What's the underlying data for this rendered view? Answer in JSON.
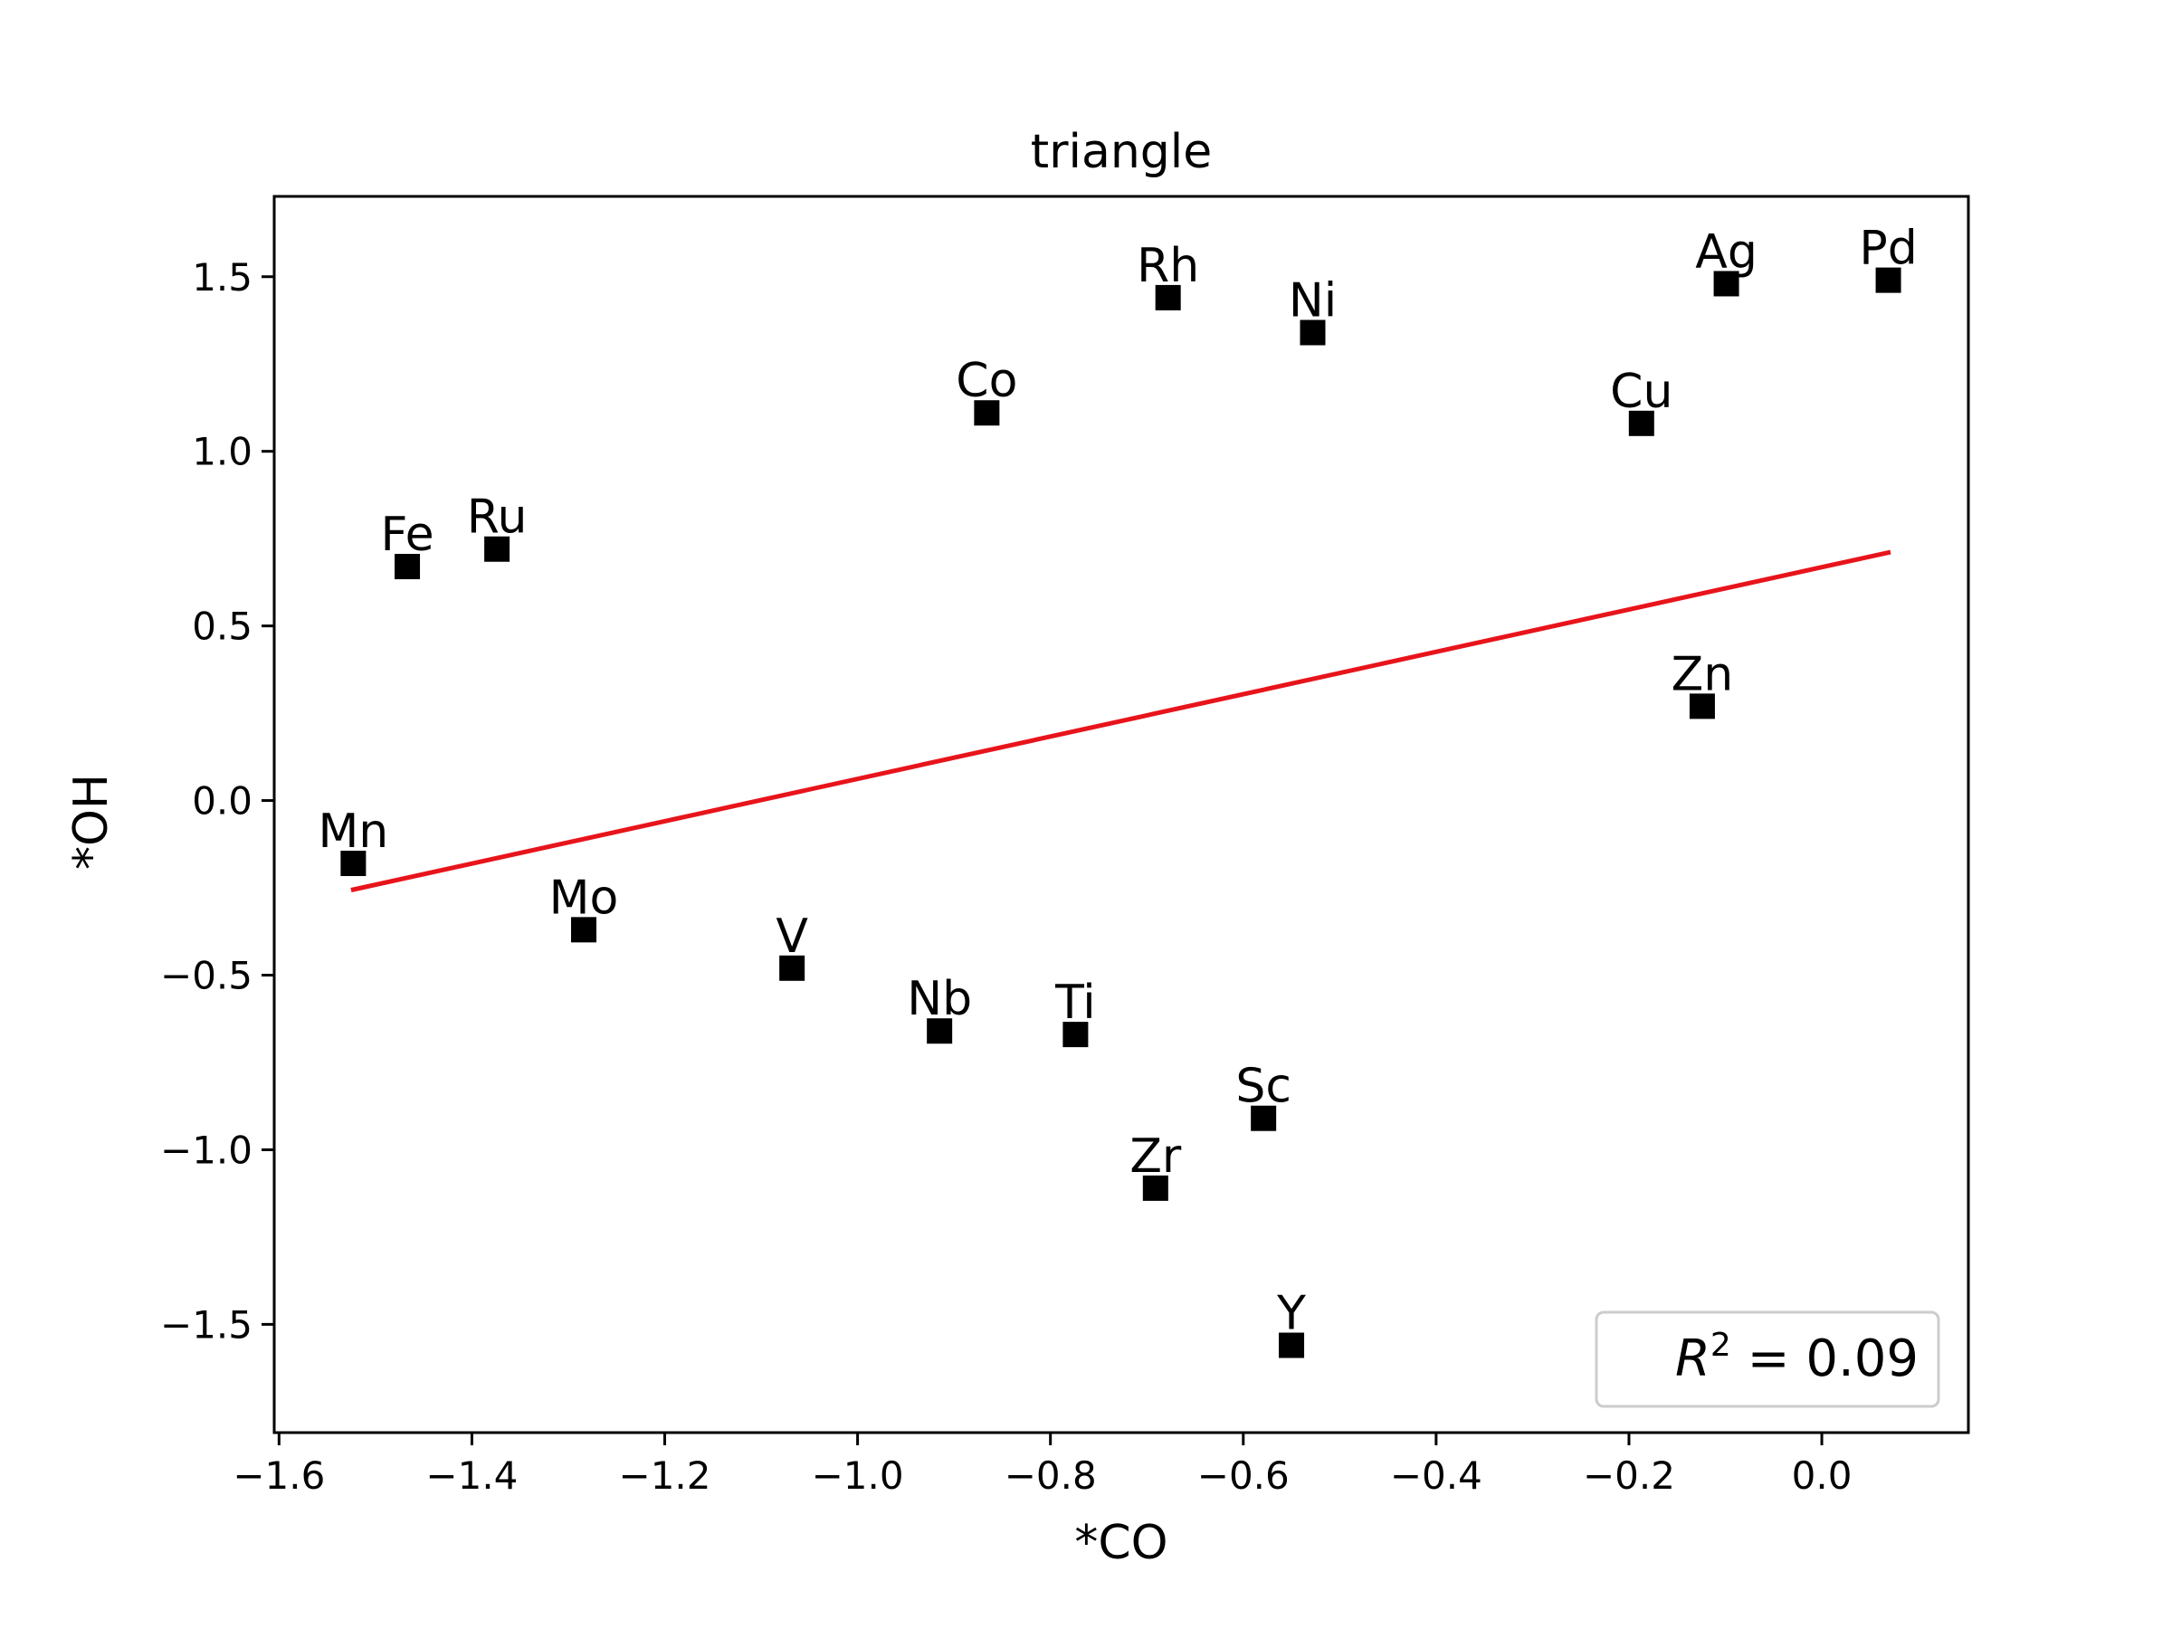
{
  "chart_data": {
    "type": "scatter",
    "title": "triangle",
    "xlabel": "*CO",
    "ylabel": "*OH",
    "xlim": [
      -1.605,
      0.152
    ],
    "ylim": [
      -1.81,
      1.73
    ],
    "xticks": [
      -1.6,
      -1.4,
      -1.2,
      -1.0,
      -0.8,
      -0.6,
      -0.4,
      -0.2,
      0.0
    ],
    "xtick_labels": [
      "−1.6",
      "−1.4",
      "−1.2",
      "−1.0",
      "−0.8",
      "−0.6",
      "−0.4",
      "−0.2",
      "0.0"
    ],
    "yticks": [
      -1.5,
      -1.0,
      -0.5,
      0.0,
      0.5,
      1.0,
      1.5
    ],
    "ytick_labels": [
      "−1.5",
      "−1.0",
      "−0.5",
      "0.0",
      "0.5",
      "1.0",
      "1.5"
    ],
    "grid": false,
    "marker": "square",
    "points": [
      {
        "label": "Fe",
        "x": -1.467,
        "y": 0.67
      },
      {
        "label": "Ru",
        "x": -1.374,
        "y": 0.72
      },
      {
        "label": "Mn",
        "x": -1.523,
        "y": -0.18
      },
      {
        "label": "Mo",
        "x": -1.284,
        "y": -0.37
      },
      {
        "label": "V",
        "x": -1.068,
        "y": -0.48
      },
      {
        "label": "Co",
        "x": -0.866,
        "y": 1.11
      },
      {
        "label": "Nb",
        "x": -0.915,
        "y": -0.66
      },
      {
        "label": "Ti",
        "x": -0.774,
        "y": -0.67
      },
      {
        "label": "Rh",
        "x": -0.678,
        "y": 1.44
      },
      {
        "label": "Zr",
        "x": -0.691,
        "y": -1.11
      },
      {
        "label": "Ni",
        "x": -0.528,
        "y": 1.34
      },
      {
        "label": "Sc",
        "x": -0.579,
        "y": -0.91
      },
      {
        "label": "Y",
        "x": -0.55,
        "y": -1.56
      },
      {
        "label": "Cu",
        "x": -0.187,
        "y": 1.08
      },
      {
        "label": "Ag",
        "x": -0.099,
        "y": 1.48
      },
      {
        "label": "Zn",
        "x": -0.124,
        "y": 0.27
      },
      {
        "label": "Pd",
        "x": 0.069,
        "y": 1.49
      }
    ],
    "fit_line": {
      "x": [
        -1.523,
        0.069
      ],
      "y": [
        -0.255,
        0.71
      ],
      "color": "#e8141b"
    },
    "legend": {
      "position": "lower-right",
      "r2_value": "0.09"
    },
    "colors": {
      "points": "#000000",
      "fit": "#e8141b",
      "frame": "#000000"
    }
  }
}
